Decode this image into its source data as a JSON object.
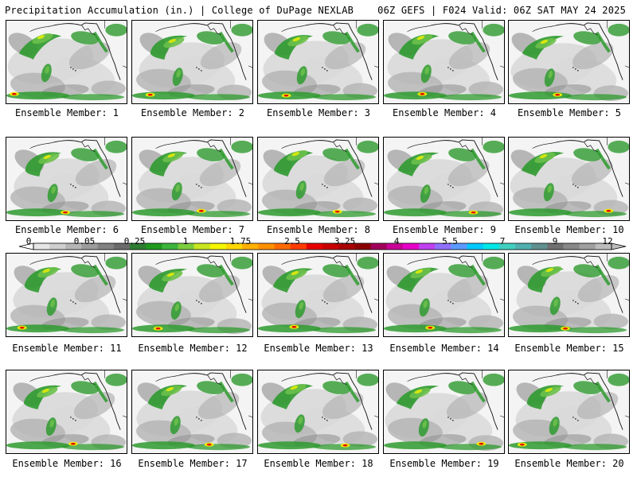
{
  "header": {
    "left_title": "Precipitation Accumulation (in.) | College of DuPage NEXLAB",
    "right_title": "06Z GEFS | F024 Valid: 06Z SAT MAY 24 2025"
  },
  "panels": [
    {
      "label": "Ensemble Member: 1"
    },
    {
      "label": "Ensemble Member: 2"
    },
    {
      "label": "Ensemble Member: 3"
    },
    {
      "label": "Ensemble Member: 4"
    },
    {
      "label": "Ensemble Member: 5"
    },
    {
      "label": "Ensemble Member: 6"
    },
    {
      "label": "Ensemble Member: 7"
    },
    {
      "label": "Ensemble Member: 8"
    },
    {
      "label": "Ensemble Member: 9"
    },
    {
      "label": "Ensemble Member: 10"
    },
    {
      "label": "Ensemble Member: 11"
    },
    {
      "label": "Ensemble Member: 12"
    },
    {
      "label": "Ensemble Member: 13"
    },
    {
      "label": "Ensemble Member: 14"
    },
    {
      "label": "Ensemble Member: 15"
    },
    {
      "label": "Ensemble Member: 16"
    },
    {
      "label": "Ensemble Member: 17"
    },
    {
      "label": "Ensemble Member: 18"
    },
    {
      "label": "Ensemble Member: 19"
    },
    {
      "label": "Ensemble Member: 20"
    }
  ],
  "colorbar": {
    "labels": [
      "0",
      "0.05",
      "0.25",
      "1",
      "1.75",
      "2.5",
      "3.25",
      "4",
      "5.5",
      "7",
      "9",
      "12"
    ],
    "colors": [
      "#e6e6e6",
      "#cfcfcf",
      "#b5b5b5",
      "#9c9c9c",
      "#828282",
      "#6b6b6b",
      "#2e7d32",
      "#1f9a1f",
      "#3cb43c",
      "#7ccd3c",
      "#c8e620",
      "#f5f500",
      "#ffd700",
      "#ffb000",
      "#ff9000",
      "#ff6a00",
      "#ff3c00",
      "#e60000",
      "#c80000",
      "#aa0000",
      "#8b0000",
      "#a0005a",
      "#c80096",
      "#e600c8",
      "#c040f0",
      "#9070ff",
      "#5a9aff",
      "#00c8ff",
      "#00e6e6",
      "#40d0c0",
      "#50b0b0",
      "#609090",
      "#707070",
      "#888888",
      "#a0a0a0",
      "#bcbcbc"
    ]
  },
  "map_colors": {
    "ocean": "#f4f4f4",
    "light_gray": "#d9d9d9",
    "mid_gray": "#b3b3b3",
    "dark_gray": "#8c8c8c",
    "green": "#2e9a2e",
    "light_green": "#6cc04a",
    "yellow": "#f0f000",
    "orange": "#ff9000",
    "red": "#e60000"
  }
}
